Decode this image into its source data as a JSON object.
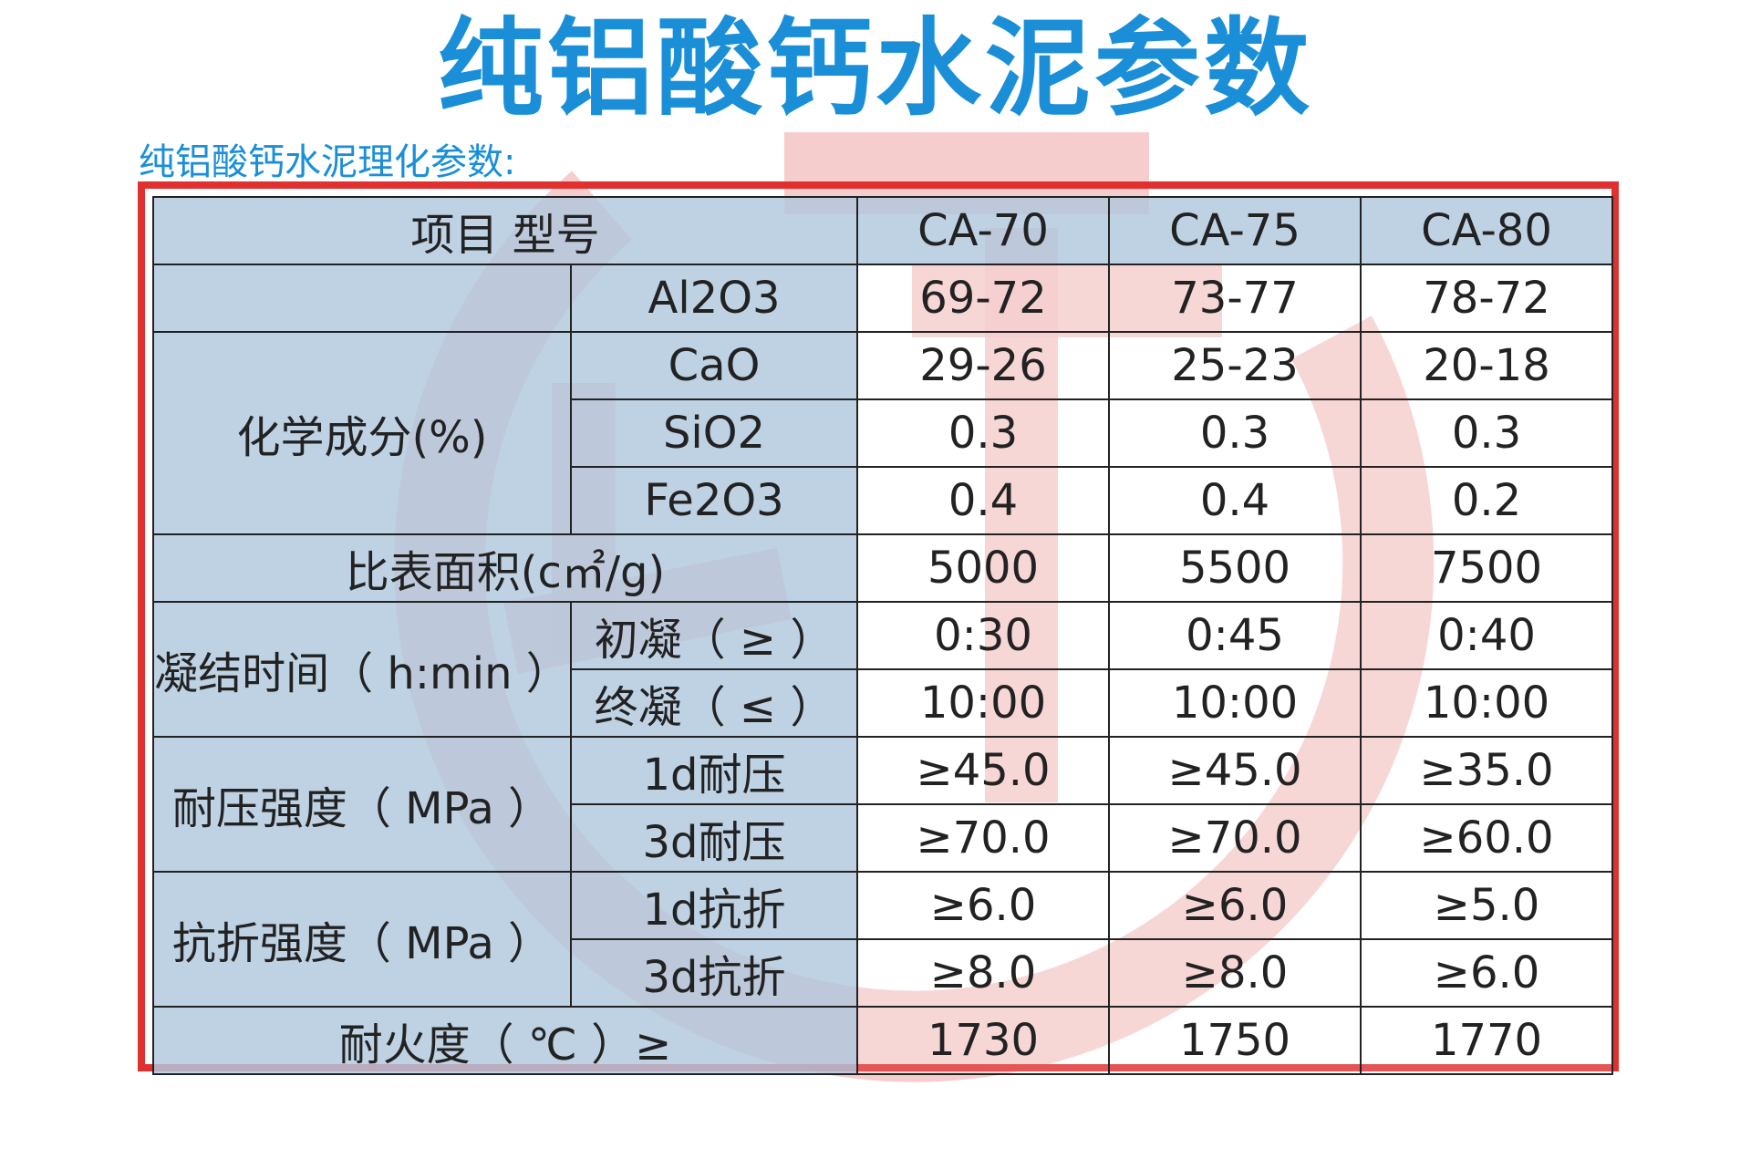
{
  "title": "纯铝酸钙水泥参数",
  "subtitle": "纯铝酸钙水泥理化参数:",
  "table": {
    "header": {
      "item_model": "项目 型号",
      "models": [
        "CA-70",
        "CA-75",
        "CA-80"
      ]
    },
    "chemical_group": "化学成分(%)",
    "al2o3": {
      "label": "Al2O3",
      "values": [
        "69-72",
        "73-77",
        "78-72"
      ]
    },
    "cao": {
      "label": "CaO",
      "values": [
        "29-26",
        "25-23",
        "20-18"
      ]
    },
    "sio2": {
      "label": "SiO2",
      "values": [
        "0.3",
        "0.3",
        "0.3"
      ]
    },
    "fe2o3": {
      "label": "Fe2O3",
      "values": [
        "0.4",
        "0.4",
        "0.2"
      ]
    },
    "surface_area": {
      "label": "比表面积(c㎡/g)",
      "values": [
        "5000",
        "5500",
        "7500"
      ]
    },
    "setting_group": "凝结时间（ h:min ）",
    "initial_set": {
      "label": "初凝（ ≥ ）",
      "values": [
        "0:30",
        "0:45",
        "0:40"
      ]
    },
    "final_set": {
      "label": "终凝（ ≤ ）",
      "values": [
        "10:00",
        "10:00",
        "10:00"
      ]
    },
    "compressive_group": "耐压强度（ MPa ）",
    "comp_1d": {
      "label": "1d耐压",
      "values": [
        "≥45.0",
        "≥45.0",
        "≥35.0"
      ]
    },
    "comp_3d": {
      "label": "3d耐压",
      "values": [
        "≥70.0",
        "≥70.0",
        "≥60.0"
      ]
    },
    "flexural_group": "抗折强度（ MPa ）",
    "flex_1d": {
      "label": "1d抗折",
      "values": [
        "≥6.0",
        "≥6.0",
        "≥5.0"
      ]
    },
    "flex_3d": {
      "label": "3d抗折",
      "values": [
        "≥8.0",
        "≥8.0",
        "≥6.0"
      ]
    },
    "refractoriness": {
      "label": "耐火度（ ℃ ）≥",
      "values": [
        "1730",
        "1750",
        "1770"
      ]
    }
  },
  "colors": {
    "title": "#1a8fd8",
    "frame": "#e03030",
    "label_cell": "#b0c8de",
    "watermark": "#f4c4c4"
  },
  "watermark_icon": "circular-seal-logo"
}
